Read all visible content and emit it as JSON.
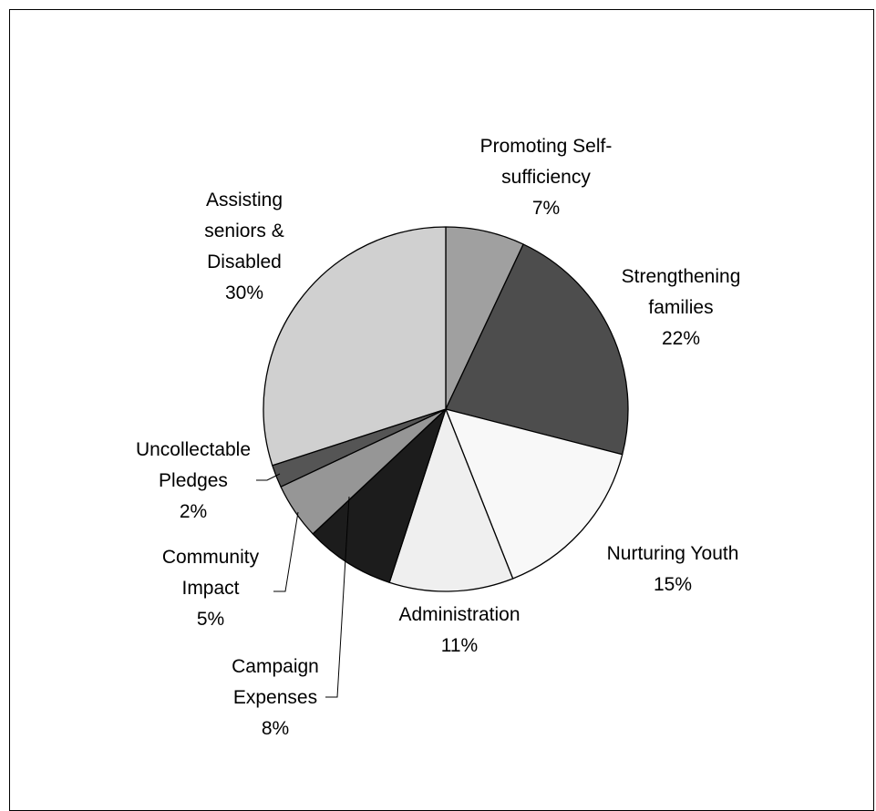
{
  "chart_data": {
    "type": "pie",
    "start_angle_deg": 0,
    "direction": "clockwise",
    "slices": [
      {
        "name": "Promoting Self-sufficiency",
        "label_lines": [
          "Promoting Self-",
          "sufficiency"
        ],
        "pct_label": "7%",
        "value": 7,
        "color": "#a0a0a0"
      },
      {
        "name": "Strengthening families",
        "label_lines": [
          "Strengthening",
          "families"
        ],
        "pct_label": "22%",
        "value": 22,
        "color": "#4d4d4d"
      },
      {
        "name": "Nurturing Youth",
        "label_lines": [
          "Nurturing Youth"
        ],
        "pct_label": "15%",
        "value": 15,
        "color": "#f8f8f8"
      },
      {
        "name": "Administration",
        "label_lines": [
          "Administration"
        ],
        "pct_label": "11%",
        "value": 11,
        "color": "#efefef"
      },
      {
        "name": "Campaign Expenses",
        "label_lines": [
          "Campaign",
          "Expenses"
        ],
        "pct_label": "8%",
        "value": 8,
        "color": "#1c1c1c"
      },
      {
        "name": "Community Impact",
        "label_lines": [
          "Community",
          "Impact"
        ],
        "pct_label": "5%",
        "value": 5,
        "color": "#969696"
      },
      {
        "name": "Uncollectable Pledges",
        "label_lines": [
          "Uncollectable",
          "Pledges"
        ],
        "pct_label": "2%",
        "value": 2,
        "color": "#555555"
      },
      {
        "name": "Assisting seniors & Disabled",
        "label_lines": [
          "Assisting",
          "seniors &",
          "Disabled"
        ],
        "pct_label": "30%",
        "value": 30,
        "color": "#d0d0d0"
      }
    ]
  }
}
